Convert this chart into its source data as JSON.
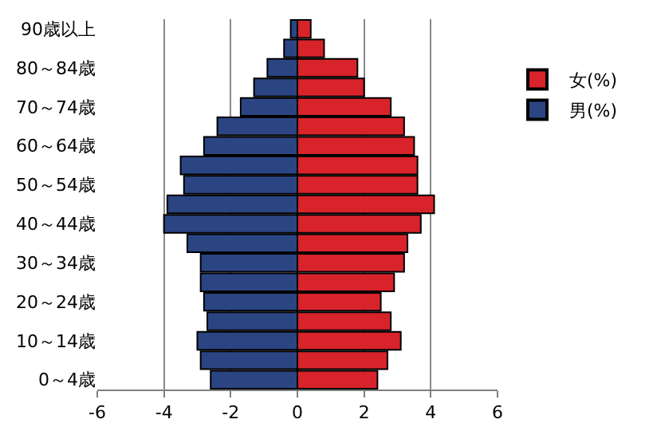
{
  "chart_data": {
    "type": "bar",
    "orientation": "horizontal",
    "stacked": true,
    "categories": [
      "90歳以上",
      null,
      "80～84歳",
      null,
      "70～74歳",
      null,
      "60～64歳",
      null,
      "50～54歳",
      null,
      "40～44歳",
      null,
      "30～34歳",
      null,
      "20～24歳",
      null,
      "10～14歳",
      null,
      "0～4歳"
    ],
    "series": [
      {
        "name": "女(%)",
        "color": "#d8232b",
        "values": [
          0.4,
          0.8,
          1.8,
          2.0,
          2.8,
          3.2,
          3.5,
          3.6,
          3.6,
          4.1,
          3.7,
          3.3,
          3.2,
          2.9,
          2.5,
          2.8,
          3.1,
          2.7,
          2.4
        ]
      },
      {
        "name": "男(%)",
        "color": "#2b4583",
        "values": [
          -0.2,
          -0.4,
          -0.9,
          -1.3,
          -1.7,
          -2.4,
          -2.8,
          -3.5,
          -3.4,
          -3.9,
          -4.0,
          -3.3,
          -2.9,
          -2.9,
          -2.8,
          -2.7,
          -3.0,
          -2.9,
          -2.6
        ]
      }
    ],
    "xlim": [
      -6,
      6
    ],
    "xticks": [
      -6,
      -4,
      -2,
      0,
      2,
      4,
      6
    ],
    "grid": "x",
    "legend": "right"
  }
}
